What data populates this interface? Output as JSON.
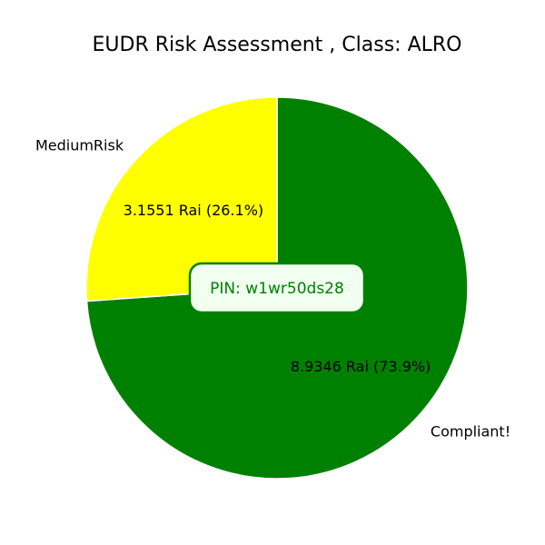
{
  "chart_data": {
    "type": "pie",
    "title": "EUDR Risk Assessment , Class: ALRO",
    "slices": [
      {
        "label": "Compliant!",
        "value": 8.9346,
        "percent": 73.9,
        "value_label": "8.9346 Rai (73.9%)",
        "color": "#008000"
      },
      {
        "label": "MediumRisk",
        "value": 3.1551,
        "percent": 26.1,
        "value_label": "3.1551 Rai (26.1%)",
        "color": "#ffff00"
      }
    ],
    "start_angle_deg": 90,
    "direction": "clockwise"
  },
  "pin_box": {
    "text": "PIN: w1wr50ds28",
    "border_color": "#008000",
    "fill_color": "#f0fff0",
    "text_color": "#008000"
  }
}
